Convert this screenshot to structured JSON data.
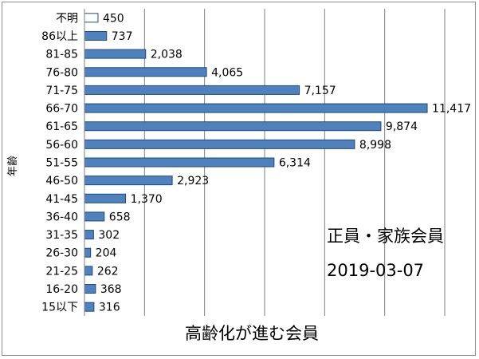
{
  "chart_data": {
    "type": "bar",
    "orientation": "horizontal",
    "categories": [
      "不明",
      "86以上",
      "81-85",
      "76-80",
      "71-75",
      "66-70",
      "61-65",
      "56-60",
      "51-55",
      "46-50",
      "41-45",
      "36-40",
      "31-35",
      "26-30",
      "21-25",
      "16-20",
      "15以下"
    ],
    "values": [
      450,
      737,
      2038,
      4065,
      7157,
      11417,
      9874,
      8998,
      6314,
      2923,
      1370,
      658,
      302,
      204,
      262,
      368,
      316
    ],
    "value_labels": [
      "450",
      "737",
      "2,038",
      "4,065",
      "7,157",
      "11,417",
      "9,874",
      "8,998",
      "6,314",
      "2,923",
      "1,370",
      "658",
      "302",
      "204",
      "262",
      "368",
      "316"
    ],
    "highlighted_category": "不明",
    "xlabel": "高齢化が進む会員",
    "ylabel": "年齢",
    "xlim": [
      0,
      12000
    ],
    "grid": true,
    "legend": "none",
    "annotations": [
      "正員・家族会員",
      "2019-03-07"
    ],
    "colors": {
      "bar": "#4f81bd",
      "bar_outline": "#1f497d",
      "highlight_fill": "#ffffff",
      "grid": "#7f7f7f"
    }
  }
}
